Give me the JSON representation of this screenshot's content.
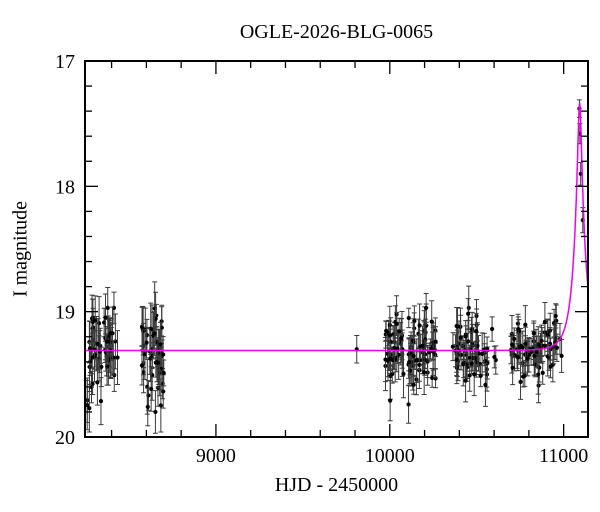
{
  "figure": {
    "title": "OGLE-2026-BLG-0065"
  },
  "chart_data": {
    "type": "scatter",
    "title": "OGLE-2026-BLG-0065",
    "xlabel": "HJD - 2450000",
    "ylabel": "I magnitude",
    "x_axis": {
      "min": 8247,
      "max": 11140,
      "major_ticks": [
        9000,
        10000,
        11000
      ],
      "minor_tick_step": 200
    },
    "y_axis": {
      "min": 17,
      "max": 20,
      "major_ticks": [
        17,
        18,
        19,
        20
      ],
      "minor_tick_step": 0.2,
      "magnitude_axis_inverted": true
    },
    "style": {
      "background": "#ffffff",
      "frame_color": "#000000",
      "point_color": "#000000",
      "error_bar_color": "#3a3a3a",
      "curve_color": "#ee00ee",
      "text_color": "#000000"
    },
    "model_curve": {
      "type": "paczynski_microlensing",
      "t0": 11092,
      "tE": 65,
      "u0": 0.165,
      "baseline_mag": 19.31,
      "peak_mag": 17.35
    },
    "baseline_seasons": [
      {
        "t_start": 8258,
        "t_end": 8448,
        "n_points": 55,
        "mag_scatter_sigma": 0.17,
        "err_min": 0.08,
        "err_max": 0.22
      },
      {
        "t_start": 8560,
        "t_end": 8700,
        "n_points": 48,
        "mag_scatter_sigma": 0.17,
        "err_min": 0.08,
        "err_max": 0.22
      },
      {
        "t_start": 9975,
        "t_end": 10265,
        "n_points": 95,
        "mag_scatter_sigma": 0.15,
        "err_min": 0.07,
        "err_max": 0.2
      },
      {
        "t_start": 10355,
        "t_end": 10610,
        "n_points": 60,
        "mag_scatter_sigma": 0.13,
        "err_min": 0.07,
        "err_max": 0.18
      },
      {
        "t_start": 10695,
        "t_end": 10990,
        "n_points": 72,
        "mag_scatter_sigma": 0.11,
        "err_min": 0.07,
        "err_max": 0.16
      }
    ],
    "highlight_points": [
      {
        "t": 9810,
        "mag": 19.3,
        "err": 0.11,
        "note": "isolated baseline point"
      },
      {
        "t": 8272,
        "mag": 19.77,
        "err": 0.19,
        "note": "faint outlier"
      },
      {
        "t": 8608,
        "mag": 19.76,
        "err": 0.15,
        "note": "faint outlier"
      },
      {
        "t": 8652,
        "mag": 19.8,
        "err": 0.17,
        "note": "faint outlier"
      },
      {
        "t": 10002,
        "mag": 19.71,
        "err": 0.16,
        "note": "faint outlier"
      },
      {
        "t": 10108,
        "mag": 19.74,
        "err": 0.15,
        "note": "faint outlier"
      },
      {
        "t": 10436,
        "mag": 19.55,
        "err": 0.17,
        "note": "faint outlier"
      },
      {
        "t": 10752,
        "mag": 19.56,
        "err": 0.14,
        "note": "faint outlier"
      },
      {
        "t": 11090.5,
        "mag": 17.38,
        "err": 0.07,
        "note": "peak"
      },
      {
        "t": 11093,
        "mag": 17.58,
        "err": 0.08,
        "note": "peak"
      },
      {
        "t": 11098,
        "mag": 17.9,
        "err": 0.09,
        "note": "peak"
      },
      {
        "t": 11110,
        "mag": 18.27,
        "err": 0.1,
        "note": "peak"
      }
    ],
    "random_seed": 7,
    "mag_clamp": [
      18.97,
      19.86
    ]
  }
}
